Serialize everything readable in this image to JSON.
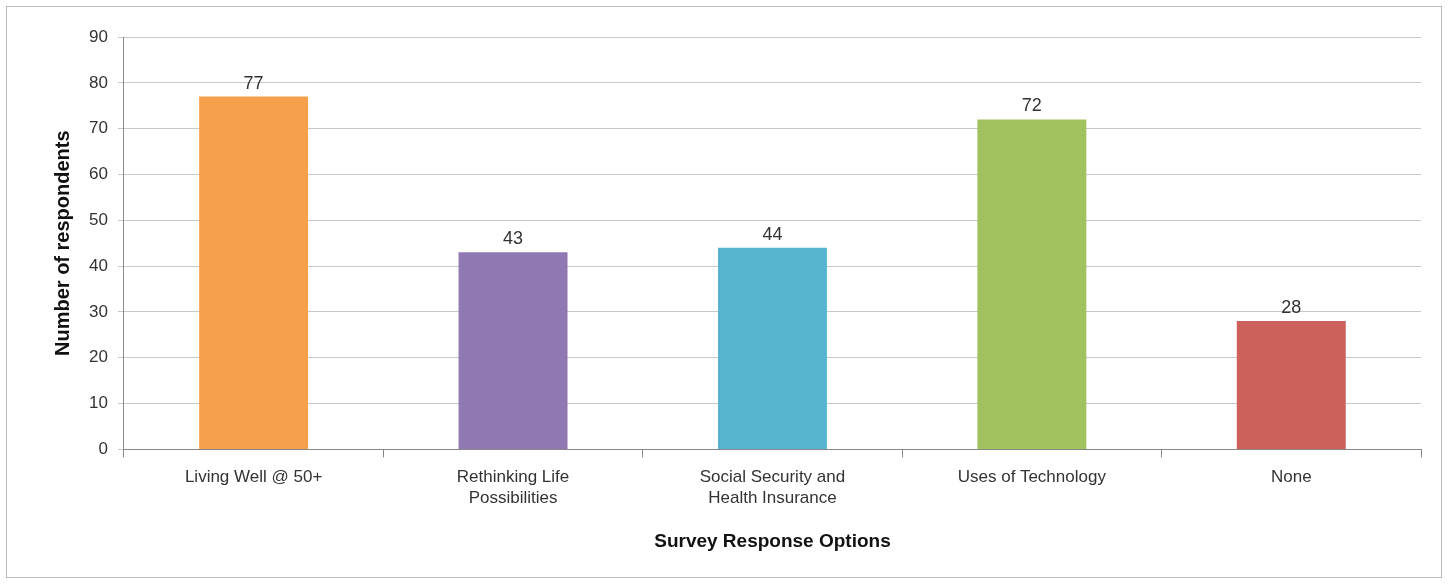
{
  "chart_data": {
    "type": "bar",
    "xlabel": "Survey Response Options",
    "ylabel": "Number of respondents",
    "categories": [
      "Living Well @ 50+",
      "Rethinking Life Possibilities",
      "Social Security and Health Insurance",
      "Uses of Technology",
      "None"
    ],
    "values": [
      77,
      43,
      44,
      72,
      28
    ],
    "colors": [
      "#f7a04b",
      "#9079b3",
      "#56b4ce",
      "#a2c15f",
      "#cc615c"
    ],
    "ylim": [
      0,
      90
    ],
    "yticks": [
      0,
      10,
      20,
      30,
      40,
      50,
      60,
      70,
      80,
      90
    ],
    "grid": "y",
    "legend": false,
    "data_labels": true
  }
}
